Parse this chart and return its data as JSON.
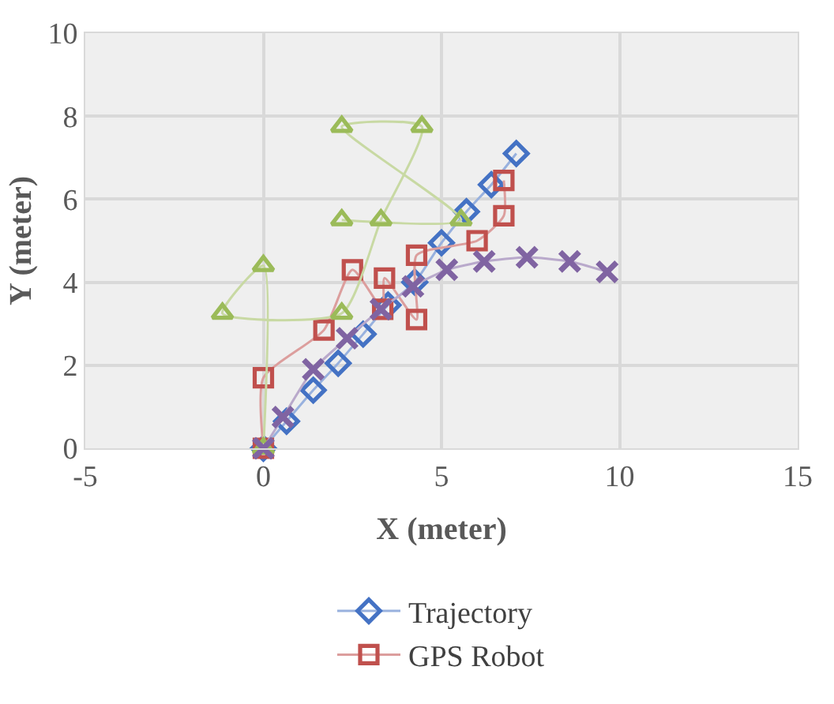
{
  "chart_data": {
    "type": "line",
    "xlabel": "X (meter)",
    "ylabel": "Y (meter)",
    "xlim": [
      -5,
      15
    ],
    "xticks": [
      -5,
      0,
      5,
      10,
      15
    ],
    "ylim": [
      0,
      10
    ],
    "yticks": [
      0,
      2,
      4,
      6,
      8,
      10
    ],
    "grid": true,
    "legend": "bottom",
    "line_style": "solid",
    "series": [
      {
        "name": "Trajectory",
        "color": "#4472c4",
        "marker": "diamond",
        "x": [
          0,
          0.65,
          1.4,
          2.1,
          2.8,
          3.5,
          4.25,
          5.0,
          5.7,
          6.4,
          7.1
        ],
        "values": [
          0,
          0.65,
          1.4,
          2.05,
          2.75,
          3.45,
          4.0,
          4.95,
          5.7,
          6.35,
          7.1
        ]
      },
      {
        "name": "GPS Robot",
        "color": "#c0504d",
        "marker": "square",
        "x": [
          0,
          0,
          1.7,
          2.5,
          3.35,
          3.4,
          4.3,
          4.3,
          6.0,
          6.75,
          6.75
        ],
        "values": [
          0,
          1.7,
          2.85,
          4.3,
          3.35,
          4.1,
          3.1,
          4.65,
          5.0,
          5.6,
          6.45
        ]
      },
      {
        "color": "#9bbb59",
        "marker": "triangle",
        "x": [
          0,
          0,
          -1.15,
          2.2,
          3.3,
          4.45,
          2.2,
          5.55,
          2.2
        ],
        "values": [
          0,
          4.4,
          3.25,
          3.25,
          5.5,
          7.75,
          7.75,
          5.5,
          5.5
        ]
      },
      {
        "color": "#8064a2",
        "marker": "cross",
        "x": [
          0,
          0.55,
          1.4,
          2.35,
          3.3,
          4.2,
          5.15,
          6.2,
          7.4,
          8.6,
          9.65
        ],
        "values": [
          0,
          0.75,
          1.9,
          2.65,
          3.35,
          3.9,
          4.3,
          4.5,
          4.6,
          4.5,
          4.25
        ]
      }
    ]
  }
}
